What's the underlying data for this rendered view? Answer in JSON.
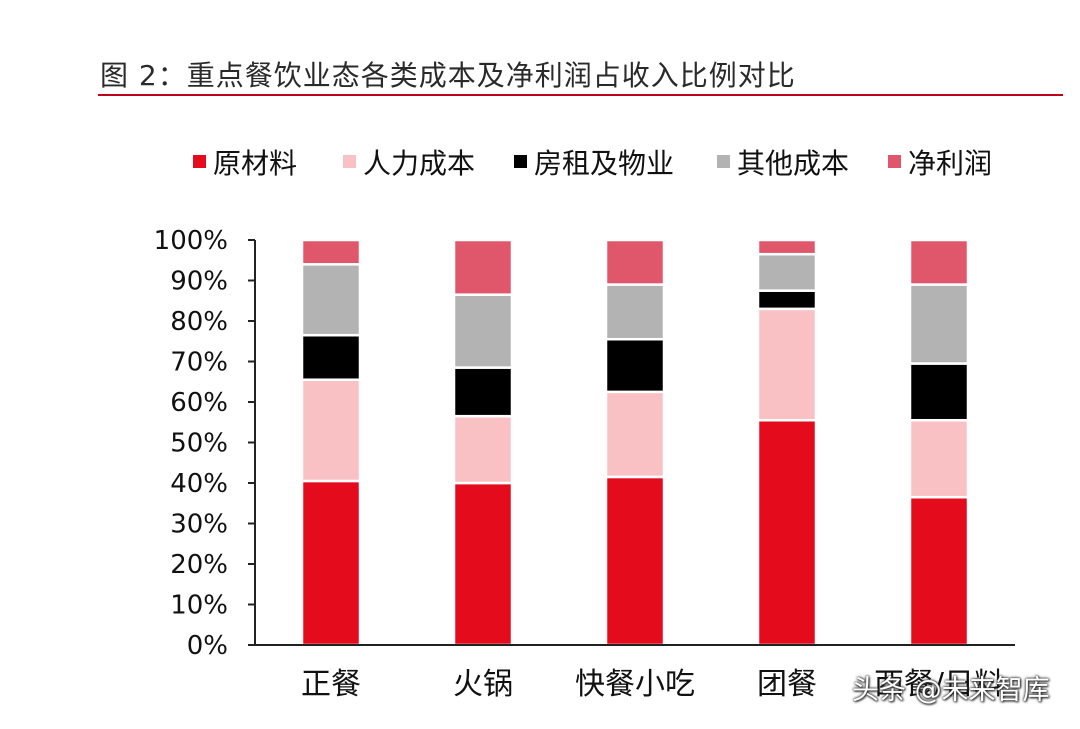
{
  "figure": {
    "title": "图 2：重点餐饮业态各类成本及净利润占收入比例对比",
    "watermark": "头条 @未来智库"
  },
  "colors": {
    "title_rule": "#c0001a",
    "axis": "#222222"
  },
  "chart_data": {
    "type": "bar",
    "stacked": true,
    "title": "图 2：重点餐饮业态各类成本及净利润占收入比例对比",
    "xlabel": "",
    "ylabel": "",
    "ylim": [
      0,
      100
    ],
    "yticks": [
      0,
      10,
      20,
      30,
      40,
      50,
      60,
      70,
      80,
      90,
      100
    ],
    "ytick_labels": [
      "0%",
      "10%",
      "20%",
      "30%",
      "40%",
      "50%",
      "60%",
      "70%",
      "80%",
      "90%",
      "100%"
    ],
    "categories": [
      "正餐",
      "火锅",
      "快餐小吃",
      "团餐",
      "西餐/日料"
    ],
    "legend_position": "top",
    "series": [
      {
        "name": "原材料",
        "color": "#e30b1c",
        "values": [
          40.5,
          40.0,
          41.5,
          55.5,
          36.5
        ]
      },
      {
        "name": "人力成本",
        "color": "#f9c1c4",
        "values": [
          25.0,
          16.5,
          21.0,
          27.5,
          19.0
        ]
      },
      {
        "name": "房租及物业",
        "color": "#000000",
        "values": [
          11.0,
          12.0,
          13.0,
          4.5,
          14.0
        ]
      },
      {
        "name": "其他成本",
        "color": "#b3b3b4",
        "values": [
          17.5,
          18.0,
          13.5,
          9.0,
          19.5
        ]
      },
      {
        "name": "净利润",
        "color": "#e0576c",
        "values": [
          6.0,
          13.5,
          11.0,
          3.5,
          11.0
        ]
      }
    ]
  }
}
